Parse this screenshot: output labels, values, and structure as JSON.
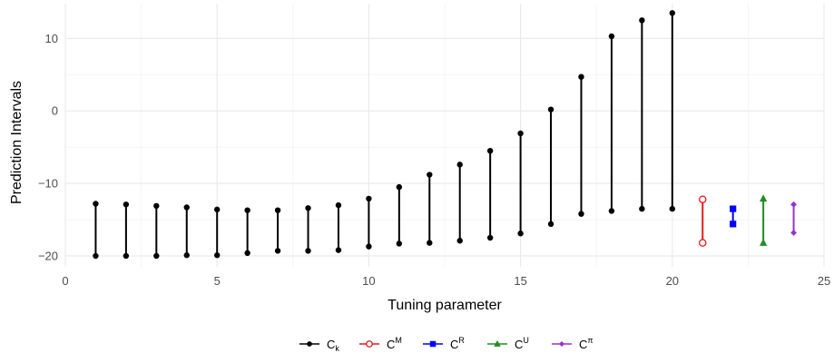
{
  "chart_data": {
    "type": "interval",
    "xlabel": "Tuning parameter",
    "ylabel": "Prediction Intervals",
    "xlim": [
      0,
      25
    ],
    "ylim": [
      -21.5,
      14.8
    ],
    "xticks": [
      "0",
      "5",
      "10",
      "15",
      "20",
      "25"
    ],
    "yticks": [
      "−20",
      "−10",
      "0",
      "10"
    ],
    "grid": true,
    "legend_position": "bottom",
    "series": [
      {
        "name_base": "C",
        "name_sub": "k",
        "name_sup": "",
        "color": "#000000",
        "marker": "filled-circle",
        "intervals": [
          {
            "x": 1,
            "lower": -20.0,
            "upper": -12.8
          },
          {
            "x": 2,
            "lower": -20.0,
            "upper": -12.9
          },
          {
            "x": 3,
            "lower": -20.0,
            "upper": -13.1
          },
          {
            "x": 4,
            "lower": -19.9,
            "upper": -13.3
          },
          {
            "x": 5,
            "lower": -19.9,
            "upper": -13.6
          },
          {
            "x": 6,
            "lower": -19.6,
            "upper": -13.7
          },
          {
            "x": 7,
            "lower": -19.3,
            "upper": -13.7
          },
          {
            "x": 8,
            "lower": -19.3,
            "upper": -13.4
          },
          {
            "x": 9,
            "lower": -19.2,
            "upper": -13.0
          },
          {
            "x": 10,
            "lower": -18.7,
            "upper": -12.1
          },
          {
            "x": 11,
            "lower": -18.3,
            "upper": -10.5
          },
          {
            "x": 12,
            "lower": -18.2,
            "upper": -8.8
          },
          {
            "x": 13,
            "lower": -17.9,
            "upper": -7.4
          },
          {
            "x": 14,
            "lower": -17.5,
            "upper": -5.5
          },
          {
            "x": 15,
            "lower": -16.9,
            "upper": -3.1
          },
          {
            "x": 16,
            "lower": -15.6,
            "upper": 0.2
          },
          {
            "x": 17,
            "lower": -14.2,
            "upper": 4.7
          },
          {
            "x": 18,
            "lower": -13.8,
            "upper": 10.3
          },
          {
            "x": 19,
            "lower": -13.5,
            "upper": 12.5
          },
          {
            "x": 20,
            "lower": -13.5,
            "upper": 13.5
          }
        ]
      },
      {
        "name_base": "C",
        "name_sub": "",
        "name_sup": "M",
        "color": "#e41a1c",
        "marker": "open-circle",
        "intervals": [
          {
            "x": 21,
            "lower": -18.2,
            "upper": -12.2
          }
        ]
      },
      {
        "name_base": "C",
        "name_sub": "",
        "name_sup": "R",
        "color": "#0000ff",
        "marker": "square",
        "intervals": [
          {
            "x": 22,
            "lower": -15.6,
            "upper": -13.5
          }
        ]
      },
      {
        "name_base": "C",
        "name_sub": "",
        "name_sup": "U",
        "color": "#228b22",
        "marker": "triangle",
        "intervals": [
          {
            "x": 23,
            "lower": -18.2,
            "upper": -12.1
          }
        ]
      },
      {
        "name_base": "C",
        "name_sub": "",
        "name_sup": "π",
        "color": "#9932cc",
        "marker": "diamond",
        "intervals": [
          {
            "x": 24,
            "lower": -16.8,
            "upper": -12.9
          }
        ]
      }
    ]
  }
}
